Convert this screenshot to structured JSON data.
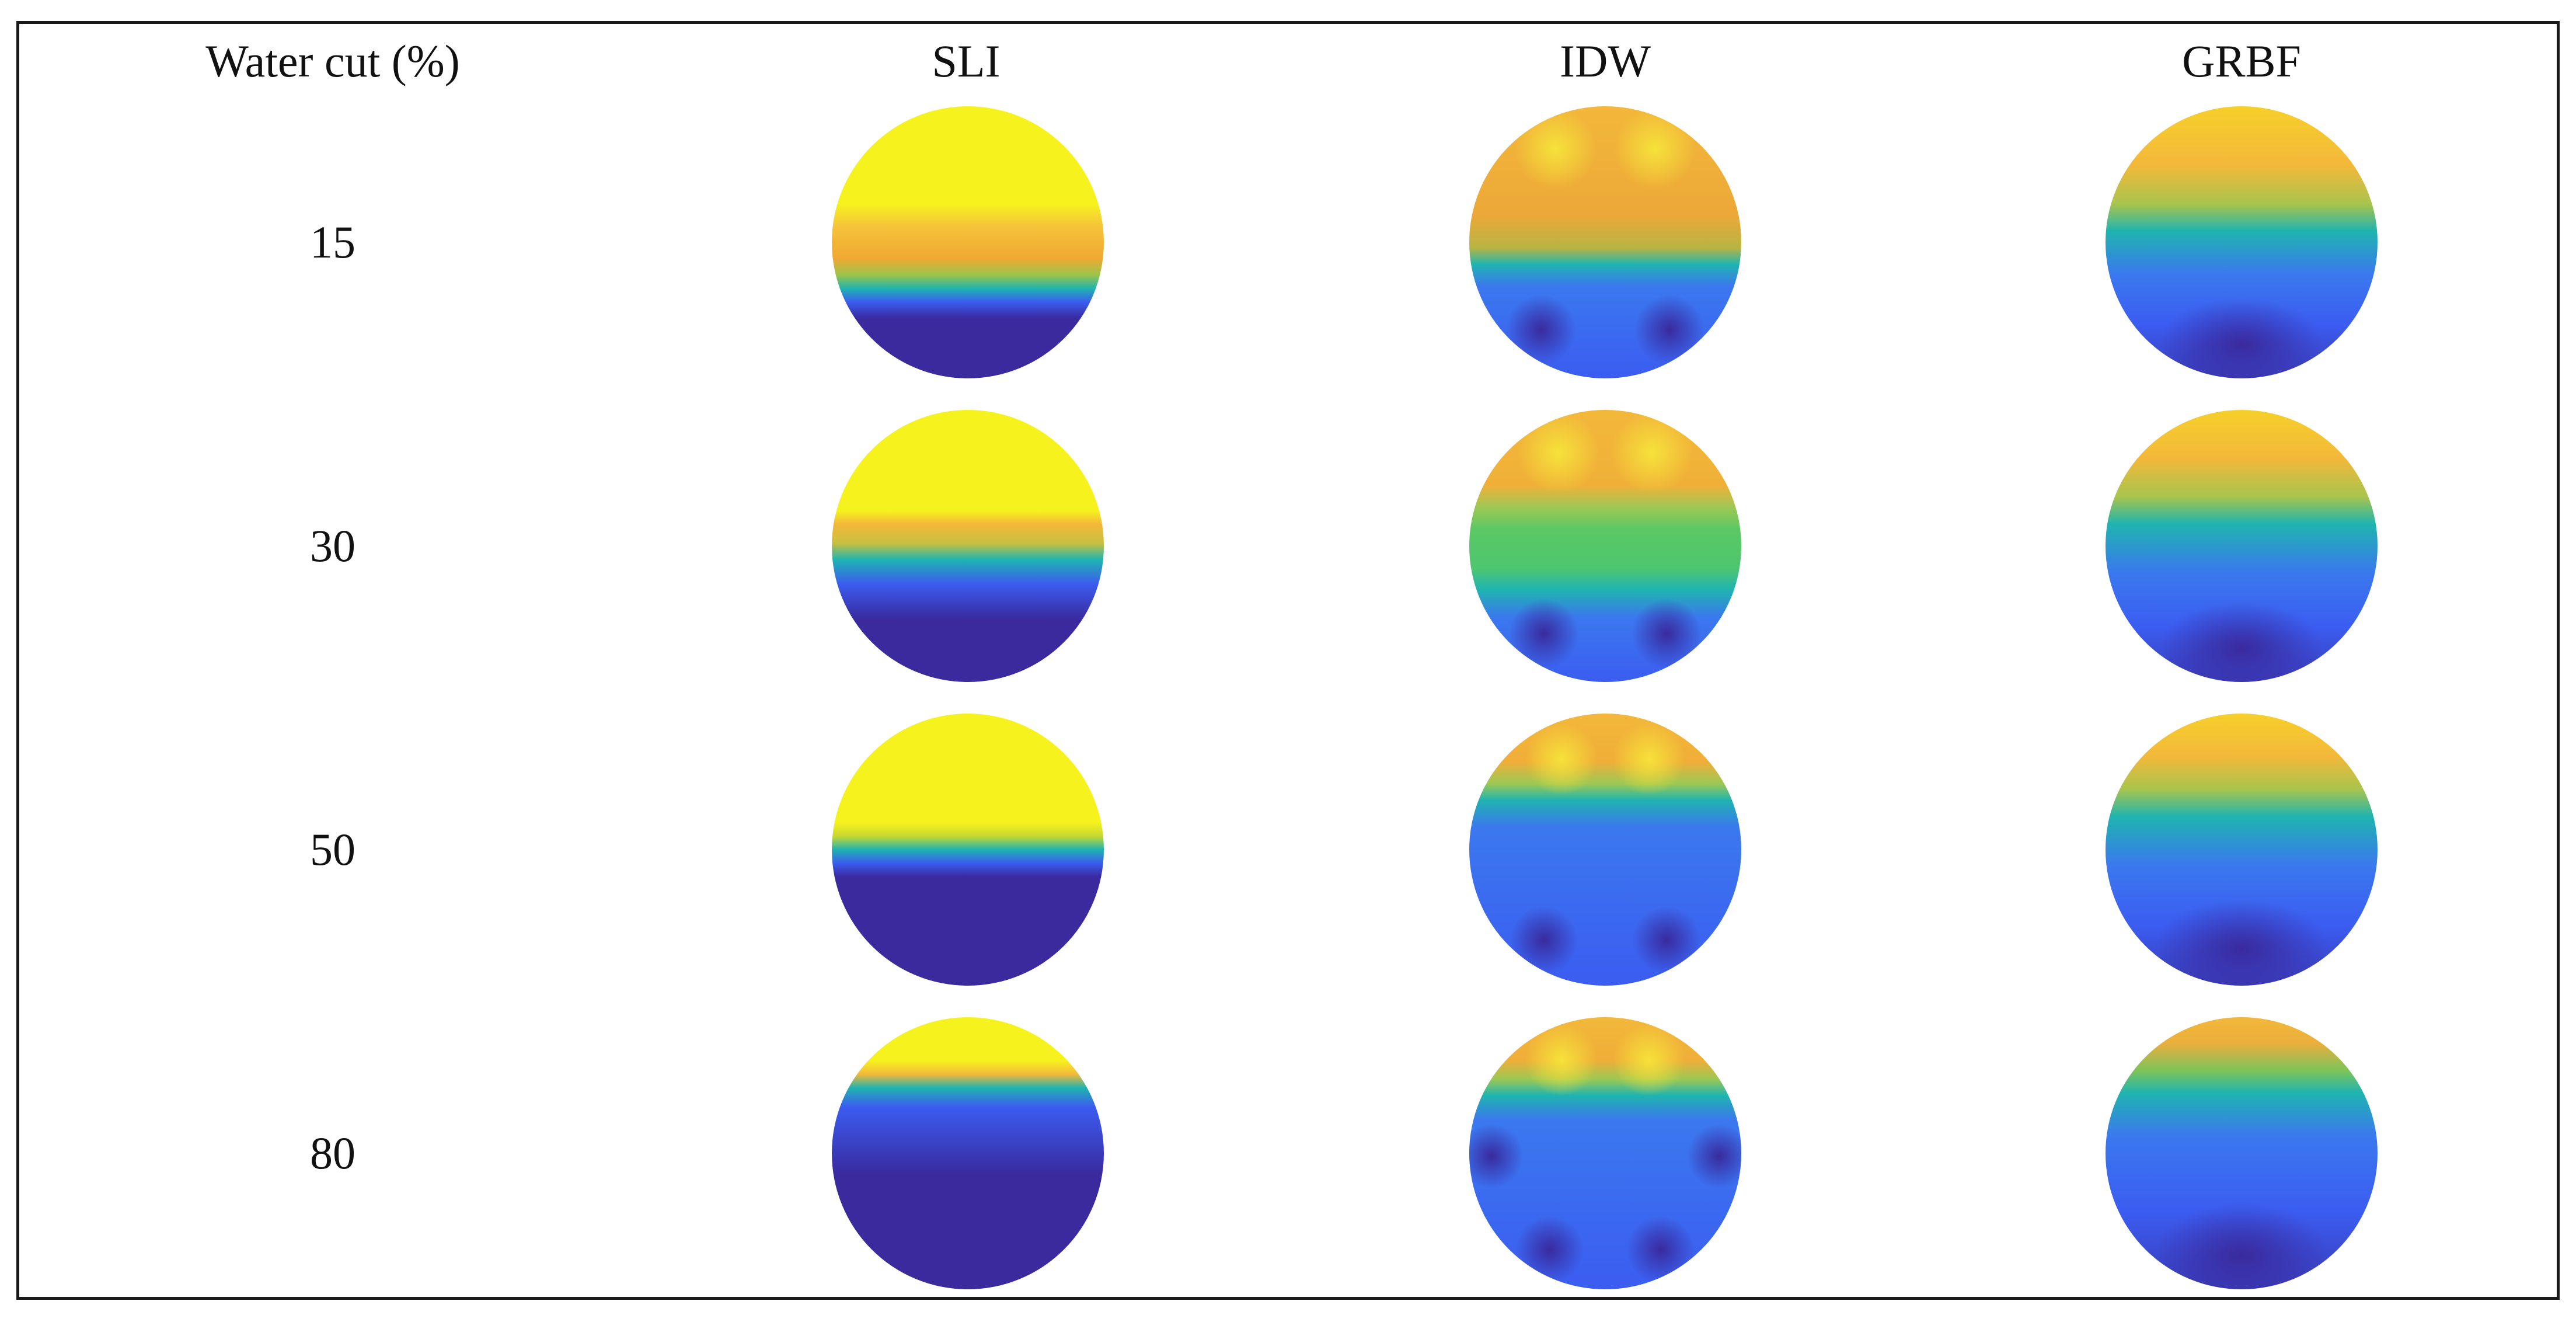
{
  "table": {
    "header": {
      "water_cut_label": "Water cut (%)",
      "col_sli": "SLI",
      "col_idw": "IDW",
      "col_grbf": "GRBF"
    },
    "rows": [
      {
        "water_cut": "15"
      },
      {
        "water_cut": "30"
      },
      {
        "water_cut": "50"
      },
      {
        "water_cut": "80"
      }
    ]
  },
  "colormap": {
    "yellow": "#f6f21e",
    "orange": "#f3b83a",
    "green": "#5ac864",
    "teal": "#1fb4b0",
    "blue": "#3b5cf0",
    "dark_blue": "#3a2a9e"
  }
}
